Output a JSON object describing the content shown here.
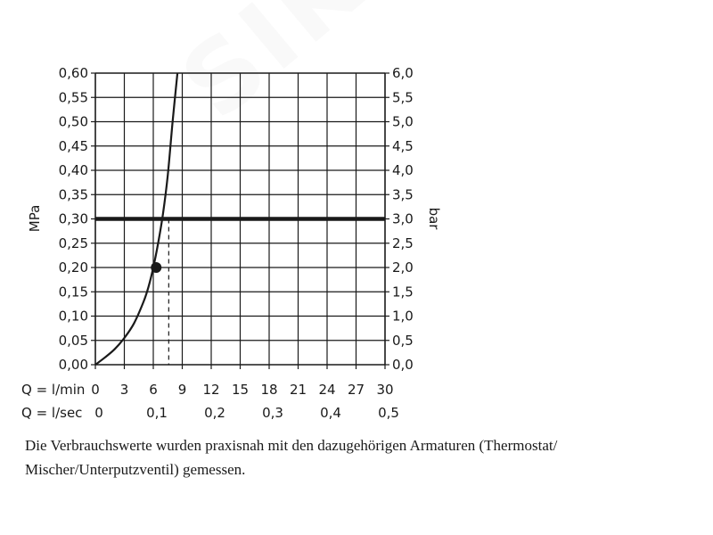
{
  "chart_data": {
    "type": "line",
    "left_axis": {
      "label": "MPa",
      "ticks": [
        "0,00",
        "0,05",
        "0,10",
        "0,15",
        "0,20",
        "0,25",
        "0,30",
        "0,35",
        "0,40",
        "0,45",
        "0,50",
        "0,55",
        "0,60"
      ],
      "ylim": [
        0,
        0.6
      ]
    },
    "right_axis": {
      "label": "bar",
      "ticks": [
        "0,0",
        "0,5",
        "1,0",
        "1,5",
        "2,0",
        "2,5",
        "3,0",
        "3,5",
        "4,0",
        "4,5",
        "5,0",
        "5,5",
        "6,0"
      ],
      "ylim": [
        0,
        6
      ]
    },
    "x_axis_lmin": {
      "label": "Q = l/min",
      "ticks": [
        "0",
        "3",
        "6",
        "9",
        "12",
        "15",
        "18",
        "21",
        "24",
        "27",
        "30"
      ],
      "xlim": [
        0,
        30
      ]
    },
    "x_axis_lsec": {
      "label": "Q = l/sec",
      "ticks": [
        "0",
        "0,1",
        "0,2",
        "0,3",
        "0,4",
        "0,5"
      ]
    },
    "series": [
      {
        "x": [
          0,
          1,
          2,
          3,
          4,
          5,
          5.5,
          6,
          6.5,
          7,
          7.5,
          8,
          8.5
        ],
        "y": [
          0,
          0.015,
          0.032,
          0.055,
          0.085,
          0.13,
          0.16,
          0.2,
          0.25,
          0.31,
          0.39,
          0.5,
          0.6
        ]
      }
    ],
    "marker_point": {
      "x": 6.3,
      "y": 0.2
    },
    "reference_line_y": 0.3,
    "dashed_line_x": 7.6,
    "grid": true
  },
  "caption": "Die Verbrauchswerte wurden praxisnah mit den dazugehörigen Armaturen (Thermostat/ Mischer/Unterputzventil) gemessen.",
  "watermark": "SIKO"
}
